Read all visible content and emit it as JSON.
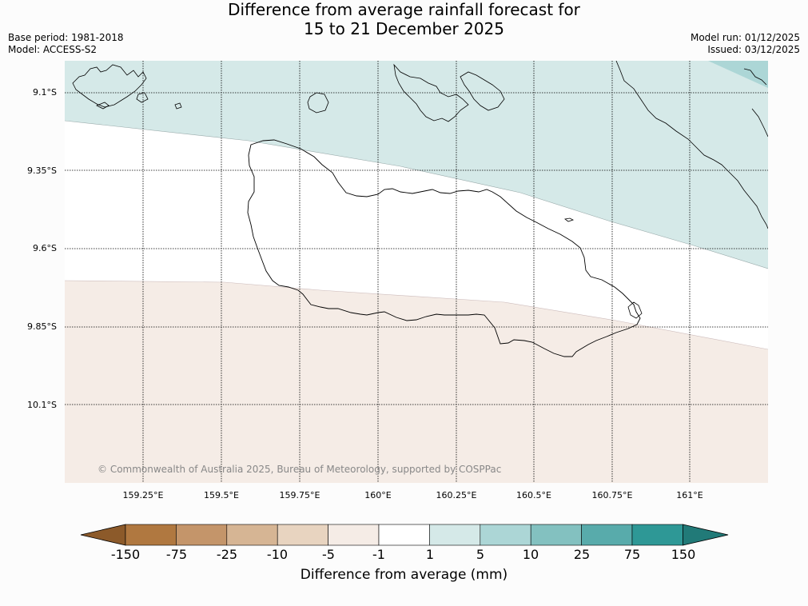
{
  "header": {
    "title_line1": "Difference from average rainfall forecast for",
    "title_line2": "15 to 21 December 2025",
    "base_period": "Base period: 1981-2018",
    "model": "Model: ACCESS-S2",
    "model_run": "Model run: 01/12/2025",
    "issued": "Issued: 03/12/2025"
  },
  "map": {
    "lat_labels": [
      "9.1°S",
      "9.35°S",
      "9.6°S",
      "9.85°S",
      "10.1°S"
    ],
    "lon_labels": [
      "159.25°E",
      "159.5°E",
      "159.75°E",
      "160°E",
      "160.25°E",
      "160.5°E",
      "160.75°E",
      "161°E"
    ],
    "copyright": "© Commonwealth of Australia 2025, Bureau of Meteorology, supported by COSPPac",
    "features": [
      "Guadalcanal island outline",
      "Santa Isabel coastline",
      "Florida Islands",
      "Savo Island",
      "Malaita coastline"
    ]
  },
  "colorbar": {
    "title": "Difference from average (mm)",
    "tick_labels": [
      "-150",
      "-75",
      "-25",
      "-10",
      "-5",
      "-1",
      "1",
      "5",
      "10",
      "25",
      "75",
      "150"
    ],
    "colors": [
      "#8c5a2a",
      "#b07840",
      "#c4956a",
      "#d6b594",
      "#e8d4c0",
      "#f5ece6",
      "#ffffff",
      "#d5e9e8",
      "#acd6d6",
      "#83c1c0",
      "#58abab",
      "#2e9896",
      "#217a78"
    ]
  },
  "legend_zones": {
    "north_band": "1 to 5",
    "central_band": "-1 to 1",
    "south_band": "-5 to -1",
    "northeast_corner": "5 to 10"
  }
}
